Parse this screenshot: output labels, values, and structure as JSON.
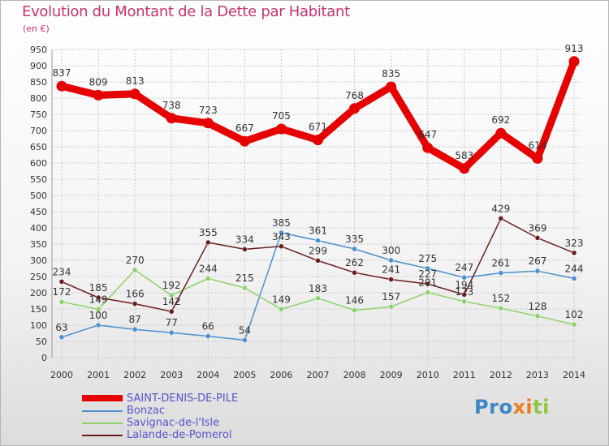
{
  "header": {
    "title": "Evolution du Montant de la Dette par Habitant",
    "subtitle": "(en €)"
  },
  "colors": {
    "title": "#c8336e",
    "legend_text": "#5555cc",
    "grid": "#c8c8c8",
    "axis_text": "#333333"
  },
  "logo": {
    "text": "Proxiti",
    "letters": [
      {
        "char": "P",
        "color": "#3e86c4"
      },
      {
        "char": "r",
        "color": "#3e86c4"
      },
      {
        "char": "o",
        "color": "#3e86c4"
      },
      {
        "char": "x",
        "color": "#f07d1c"
      },
      {
        "char": "i",
        "color": "#f07d1c"
      },
      {
        "char": "t",
        "color": "#8dc63f"
      },
      {
        "char": "i",
        "color": "#8dc63f"
      }
    ]
  },
  "chart_data": {
    "type": "line",
    "title": "Evolution du Montant de la Dette par Habitant",
    "subtitle": "(en €)",
    "x": [
      "2000",
      "2001",
      "2002",
      "2003",
      "2004",
      "2005",
      "2006",
      "2007",
      "2008",
      "2009",
      "2010",
      "2011",
      "2012",
      "2013",
      "2014"
    ],
    "ylim": [
      0,
      950
    ],
    "yticks": [
      0,
      50,
      100,
      150,
      200,
      250,
      300,
      350,
      400,
      450,
      500,
      550,
      600,
      650,
      700,
      750,
      800,
      850,
      900,
      950
    ],
    "grid": true,
    "legend_position": "bottom-left",
    "series": [
      {
        "name": "SAINT-DENIS-DE-PILE",
        "color": "#e60000",
        "values": [
          837,
          809,
          813,
          738,
          723,
          667,
          705,
          671,
          768,
          835,
          647,
          583,
          692,
          614,
          913
        ],
        "labels": [
          "837",
          "809",
          "813",
          "738",
          "723",
          "667",
          "705",
          "671",
          "768",
          "835",
          "647",
          "583",
          "692",
          "614",
          "913"
        ]
      },
      {
        "name": "Bonzac",
        "color": "#4c8fce",
        "values": [
          63,
          100,
          87,
          77,
          66,
          54,
          385,
          361,
          335,
          300,
          275,
          247,
          261,
          267,
          244
        ],
        "labels": [
          "63",
          "100",
          "87",
          "77",
          "66",
          "54",
          "385",
          "361",
          "335",
          "300",
          "275",
          "247",
          "261",
          "267",
          "244"
        ]
      },
      {
        "name": "Savignac-de-l'Isle",
        "color": "#8ed16b",
        "values": [
          172,
          149,
          270,
          192,
          244,
          215,
          149,
          183,
          146,
          157,
          201,
          173,
          152,
          128,
          102
        ],
        "labels": [
          "172",
          "149",
          "270",
          "192",
          "244",
          "215",
          "149",
          "183",
          "146",
          "157",
          "201",
          "173",
          "152",
          "128",
          "102"
        ]
      },
      {
        "name": "Lalande-de-Pomerol",
        "color": "#6b1d1d",
        "values": [
          234,
          185,
          166,
          142,
          355,
          334,
          343,
          299,
          262,
          241,
          227,
          194,
          429,
          369,
          323
        ],
        "labels": [
          "234",
          "185",
          "166",
          "142",
          "355",
          "334",
          "343",
          "299",
          "262",
          "241",
          "227",
          "194",
          "429",
          "369",
          "323"
        ]
      }
    ]
  }
}
